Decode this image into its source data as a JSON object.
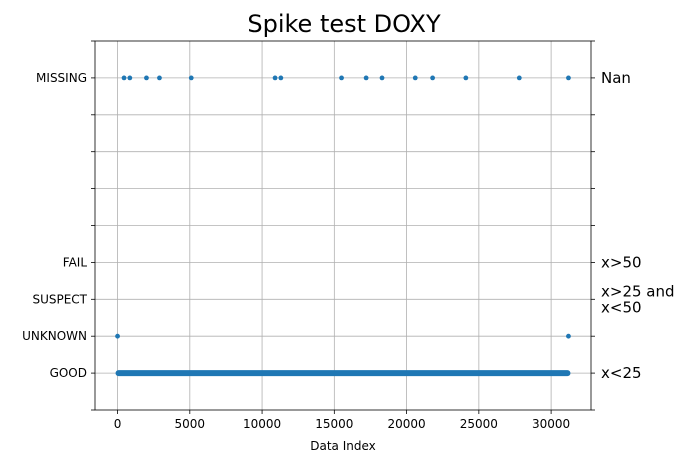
{
  "chart_data": {
    "type": "scatter",
    "title": "Spike test DOXY",
    "xlabel": "Data Index",
    "ylabel": "",
    "xlim": [
      -1560,
      32760
    ],
    "ylim": [
      -1,
      9
    ],
    "x_ticks": [
      0,
      5000,
      10000,
      15000,
      20000,
      25000,
      30000
    ],
    "y_ticks": [
      {
        "value": 0,
        "label": "GOOD"
      },
      {
        "value": 1,
        "label": "UNKNOWN"
      },
      {
        "value": 2,
        "label": "SUSPECT"
      },
      {
        "value": 3,
        "label": "FAIL"
      },
      {
        "value": 4,
        "label": ""
      },
      {
        "value": 5,
        "label": ""
      },
      {
        "value": 6,
        "label": ""
      },
      {
        "value": 7,
        "label": ""
      },
      {
        "value": 8,
        "label": "MISSING"
      }
    ],
    "right_labels": [
      {
        "value": 8,
        "lines": [
          "Nan"
        ]
      },
      {
        "value": 3,
        "lines": [
          "x>50"
        ]
      },
      {
        "value": 2,
        "lines": [
          "x>25 and",
          "x<50"
        ]
      },
      {
        "value": 0,
        "lines": [
          "x<25"
        ]
      }
    ],
    "grid": true,
    "marker_color": "#1f77b4",
    "series": [
      {
        "good_range": [
          0,
          31200
        ],
        "points": [
          {
            "x": 0,
            "y": 1
          },
          {
            "x": 31200,
            "y": 1
          },
          {
            "x": 450,
            "y": 8
          },
          {
            "x": 850,
            "y": 8
          },
          {
            "x": 2000,
            "y": 8
          },
          {
            "x": 2900,
            "y": 8
          },
          {
            "x": 5100,
            "y": 8
          },
          {
            "x": 10900,
            "y": 8
          },
          {
            "x": 11300,
            "y": 8
          },
          {
            "x": 15500,
            "y": 8
          },
          {
            "x": 17200,
            "y": 8
          },
          {
            "x": 18300,
            "y": 8
          },
          {
            "x": 20600,
            "y": 8
          },
          {
            "x": 21800,
            "y": 8
          },
          {
            "x": 24100,
            "y": 8
          },
          {
            "x": 27800,
            "y": 8
          },
          {
            "x": 31200,
            "y": 8
          }
        ]
      }
    ]
  }
}
